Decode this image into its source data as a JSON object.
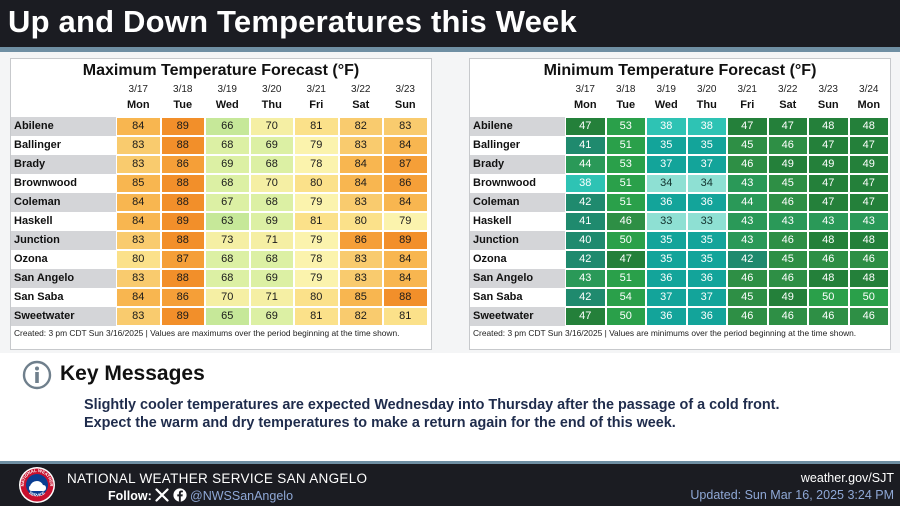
{
  "header": {
    "title": "Up and Down Temperatures this Week"
  },
  "max_panel": {
    "title": "Maximum Temperature Forecast (°F)",
    "dates": [
      "3/17",
      "3/18",
      "3/19",
      "3/20",
      "3/21",
      "3/22",
      "3/23"
    ],
    "days": [
      "Mon",
      "Tue",
      "Wed",
      "Thu",
      "Fri",
      "Sat",
      "Sun"
    ],
    "rows": [
      {
        "city": "Abilene",
        "values": [
          84,
          89,
          66,
          70,
          81,
          82,
          83
        ]
      },
      {
        "city": "Ballinger",
        "values": [
          83,
          88,
          68,
          69,
          79,
          83,
          84
        ]
      },
      {
        "city": "Brady",
        "values": [
          83,
          86,
          69,
          68,
          78,
          84,
          87
        ]
      },
      {
        "city": "Brownwood",
        "values": [
          85,
          88,
          68,
          70,
          80,
          84,
          86
        ]
      },
      {
        "city": "Coleman",
        "values": [
          84,
          88,
          67,
          68,
          79,
          83,
          84
        ]
      },
      {
        "city": "Haskell",
        "values": [
          84,
          89,
          63,
          69,
          81,
          80,
          79
        ]
      },
      {
        "city": "Junction",
        "values": [
          83,
          88,
          73,
          71,
          79,
          86,
          89
        ]
      },
      {
        "city": "Ozona",
        "values": [
          80,
          87,
          68,
          68,
          78,
          83,
          84
        ]
      },
      {
        "city": "San Angelo",
        "values": [
          83,
          88,
          68,
          69,
          79,
          83,
          84
        ]
      },
      {
        "city": "San Saba",
        "values": [
          84,
          86,
          70,
          71,
          80,
          85,
          88
        ]
      },
      {
        "city": "Sweetwater",
        "values": [
          83,
          89,
          65,
          69,
          81,
          82,
          81
        ]
      }
    ],
    "footnote": "Created: 3 pm CDT Sun 3/16/2025  |  Values are maximums over the period beginning at the time shown."
  },
  "min_panel": {
    "title": "Minimum Temperature Forecast (°F)",
    "dates": [
      "3/17",
      "3/18",
      "3/19",
      "3/20",
      "3/21",
      "3/22",
      "3/23",
      "3/24"
    ],
    "days": [
      "Mon",
      "Tue",
      "Wed",
      "Thu",
      "Fri",
      "Sat",
      "Sun",
      "Mon"
    ],
    "rows": [
      {
        "city": "Abilene",
        "values": [
          47,
          53,
          38,
          38,
          47,
          47,
          48,
          48
        ]
      },
      {
        "city": "Ballinger",
        "values": [
          41,
          51,
          35,
          35,
          45,
          46,
          47,
          47
        ]
      },
      {
        "city": "Brady",
        "values": [
          44,
          53,
          37,
          37,
          46,
          49,
          49,
          49
        ]
      },
      {
        "city": "Brownwood",
        "values": [
          38,
          51,
          34,
          34,
          43,
          45,
          47,
          47
        ]
      },
      {
        "city": "Coleman",
        "values": [
          42,
          51,
          36,
          36,
          44,
          46,
          47,
          47
        ]
      },
      {
        "city": "Haskell",
        "values": [
          41,
          46,
          33,
          33,
          43,
          43,
          43,
          43
        ]
      },
      {
        "city": "Junction",
        "values": [
          40,
          50,
          35,
          35,
          43,
          46,
          48,
          48
        ]
      },
      {
        "city": "Ozona",
        "values": [
          42,
          47,
          35,
          35,
          42,
          45,
          46,
          46
        ]
      },
      {
        "city": "San Angelo",
        "values": [
          43,
          51,
          36,
          36,
          46,
          46,
          48,
          48
        ]
      },
      {
        "city": "San Saba",
        "values": [
          42,
          54,
          37,
          37,
          45,
          49,
          50,
          50
        ]
      },
      {
        "city": "Sweetwater",
        "values": [
          47,
          50,
          36,
          36,
          46,
          46,
          46,
          46
        ]
      }
    ],
    "footnote": "Created: 3 pm CDT Sun 3/16/2025  |  Values are minimums over the period beginning at the time shown."
  },
  "key_messages": {
    "heading": "Key Messages",
    "line1": "Slightly cooler temperatures are expected Wednesday into Thursday after the passage of a cold front.",
    "line2": "Expect the warm and dry temperatures to make a return again for the end of this week."
  },
  "footer": {
    "office": "NATIONAL WEATHER SERVICE SAN ANGELO",
    "follow_label": "Follow:",
    "handle": "@NWSSanAngelo",
    "website": "weather.gov/SJT",
    "updated": "Updated: Sun Mar 16, 2025 3:24 PM"
  },
  "logo_text": {
    "top": "NATIONAL WEATHER",
    "bottom": "SERVICE"
  },
  "colors": {
    "max_scale": [
      "#fbf3ad",
      "#fbe18a",
      "#f9cb6e",
      "#f8b650",
      "#f59f38",
      "#f28f2a"
    ],
    "min_scale": [
      "#8ee0d3",
      "#2ec3b4",
      "#13a49a",
      "#1e8a83",
      "#238b4a",
      "#2a7f3d"
    ]
  }
}
